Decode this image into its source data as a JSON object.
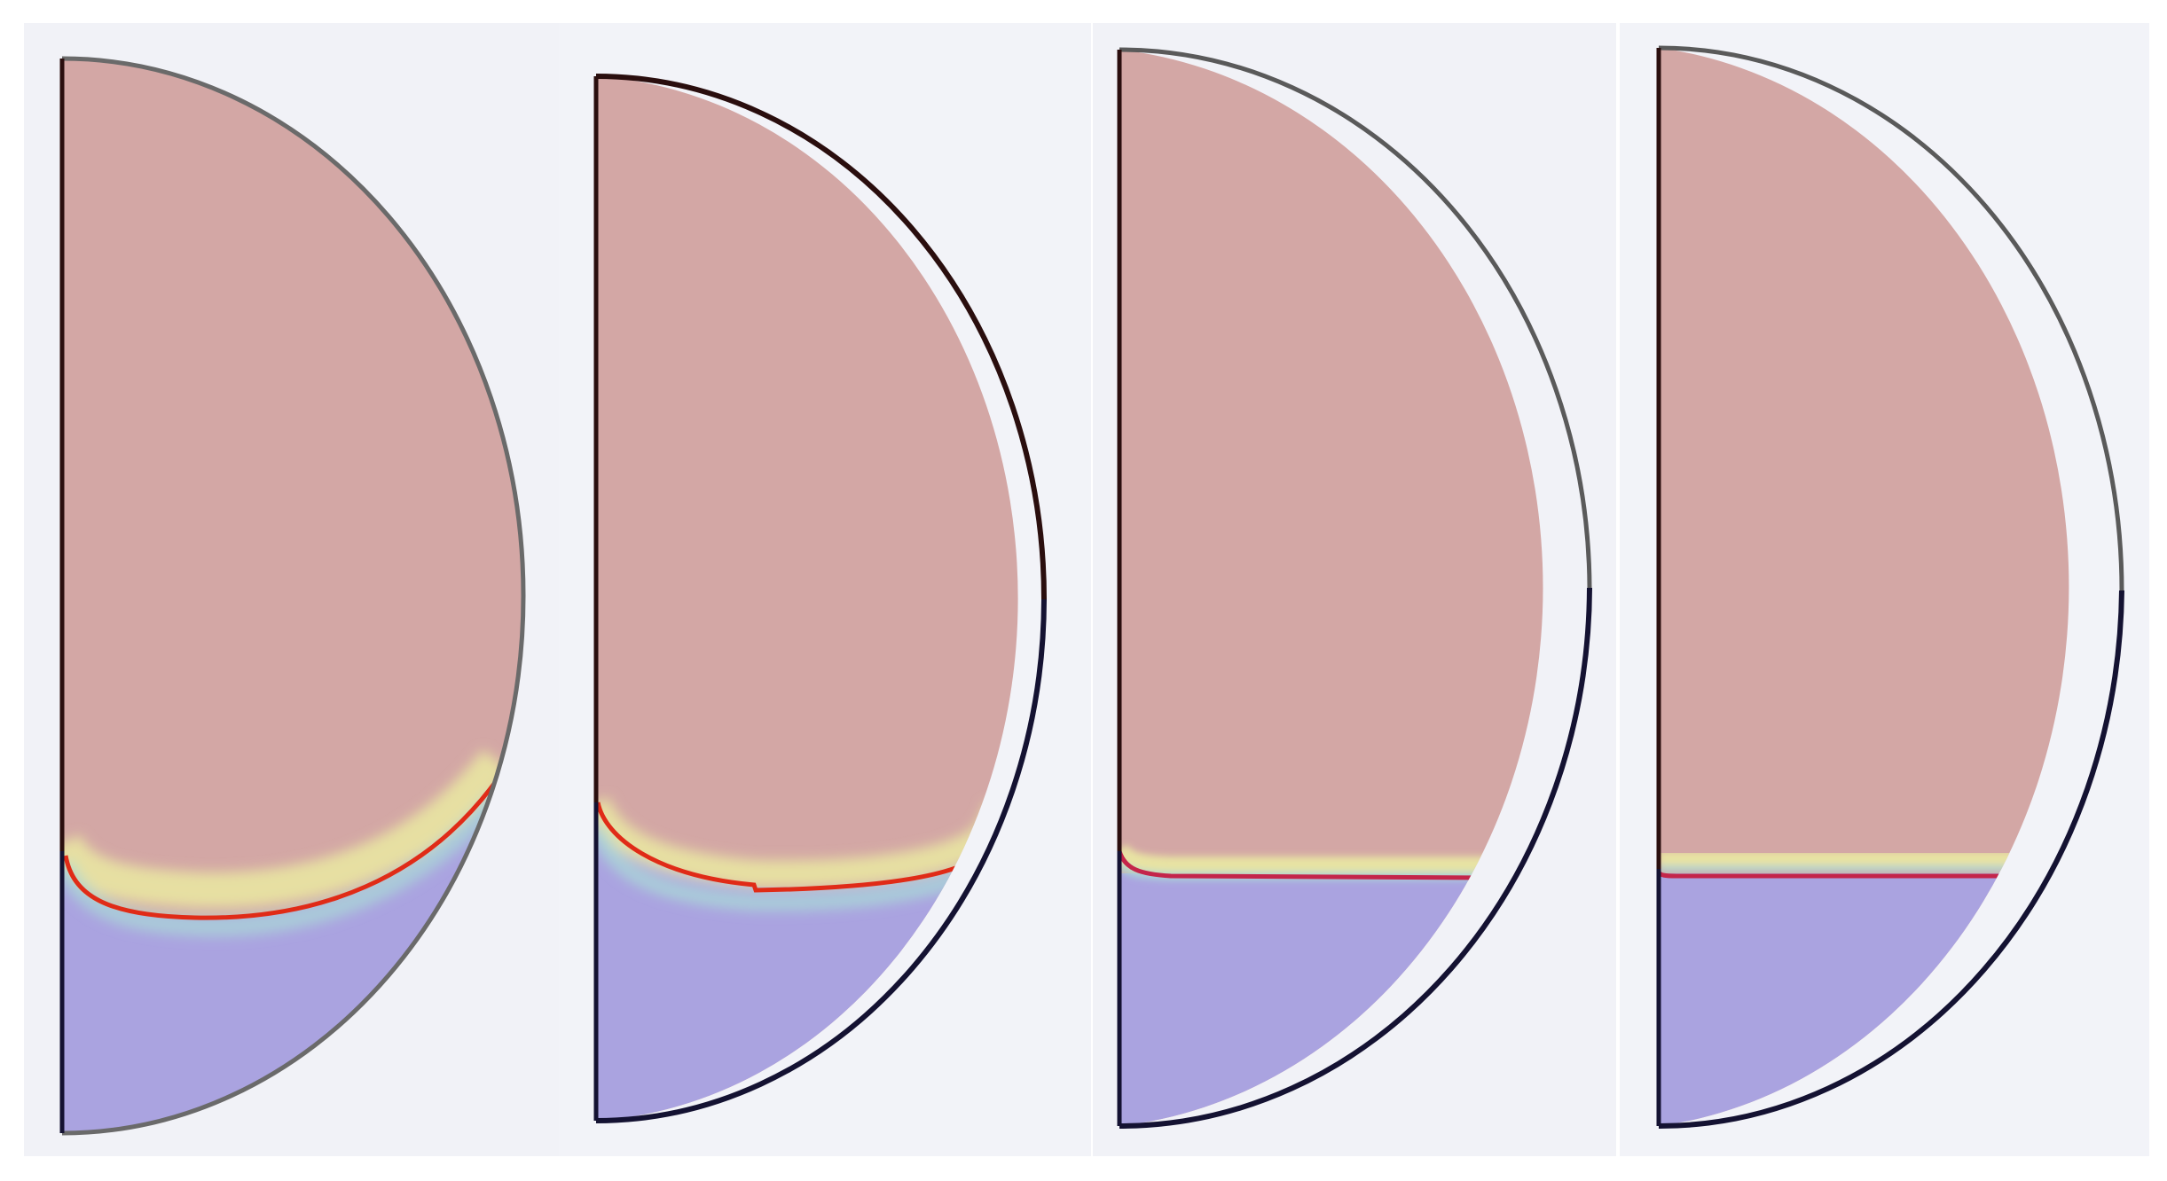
{
  "colors": {
    "page_background": "#ffffff",
    "panel_background": "#f2f3f8",
    "upper_phase": "#d3a7a5",
    "lower_phase": "#aaa3e0",
    "interface_line": "#e02b17",
    "interface_line_alt": "#c4254a",
    "diffuse_band_yellow": "#e7e6a4",
    "diffuse_band_cyan": "#a8dcd8",
    "outline_upper_dark": "#2a0e0e",
    "outline_lower_dark": "#141232",
    "outline_gray": "#6a6a6a"
  },
  "panels": [
    {
      "id": "frame-1",
      "interface_shape": "curved",
      "diffuse_band": "wide"
    },
    {
      "id": "frame-2",
      "interface_shape": "curved-shallow",
      "diffuse_band": "medium"
    },
    {
      "id": "frame-3",
      "interface_shape": "flat",
      "diffuse_band": "thin"
    },
    {
      "id": "frame-4",
      "interface_shape": "flat",
      "diffuse_band": "thin"
    }
  ]
}
